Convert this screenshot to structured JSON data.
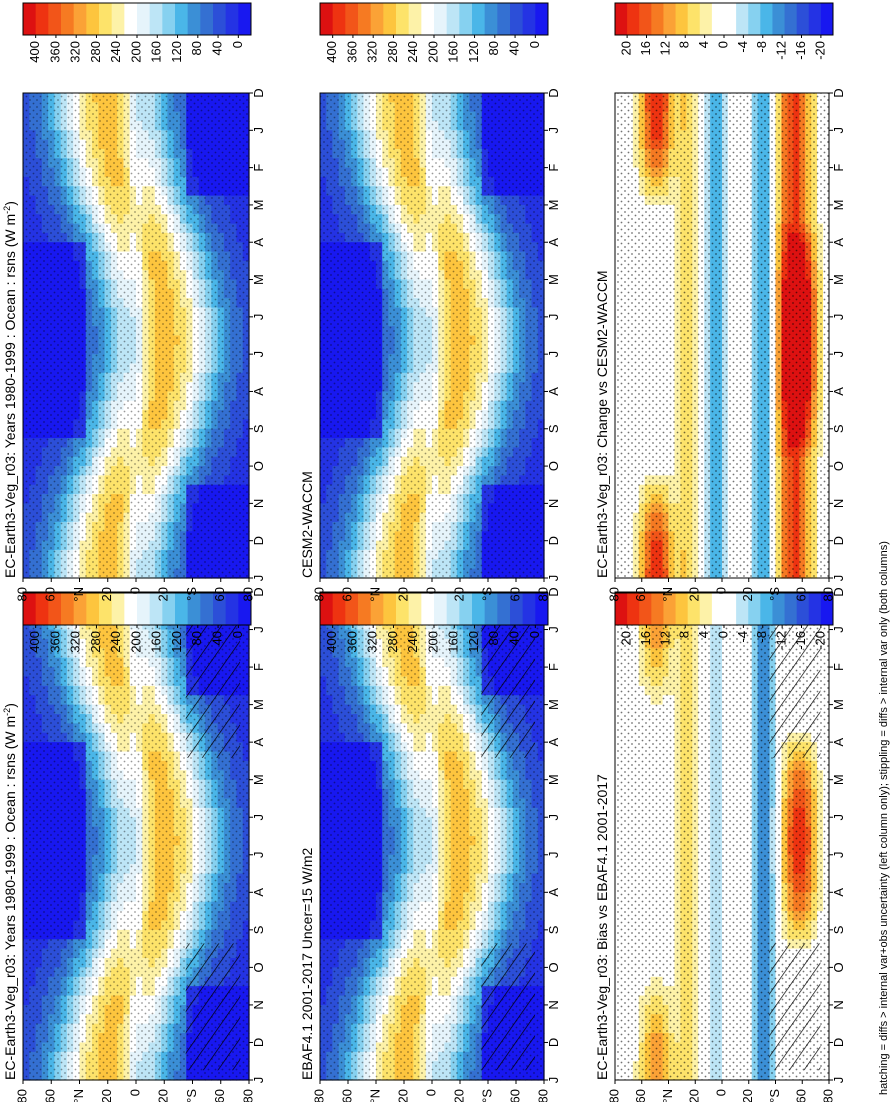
{
  "figure": {
    "footnote": "hatching = diffs > internal var+obs uncertainty (left column only); stippling = diffs > internal var only (both columns)"
  },
  "panels": [
    {
      "id": "left-top",
      "title": "EC-Earth3-Veg_r03: Years 1980-1999 : Ocean : rsns (W m",
      "title_sup": "-2",
      "title_end": ")",
      "kind": "climatology",
      "colorbar_ticks": [
        "400",
        "360",
        "320",
        "280",
        "240",
        "200",
        "160",
        "120",
        "80",
        "40",
        "0"
      ],
      "hatching": true
    },
    {
      "id": "right-top",
      "title": "EC-Earth3-Veg_r03: Years 1980-1999 : Ocean : rsns (W m",
      "title_sup": "-2",
      "title_end": ")",
      "kind": "climatology",
      "colorbar_ticks": [
        "400",
        "360",
        "320",
        "280",
        "240",
        "200",
        "160",
        "120",
        "80",
        "40",
        "0"
      ],
      "hatching": false
    },
    {
      "id": "left-mid",
      "title": "EBAF4.1 2001-2017 Uncer=15 W/m2",
      "kind": "climatology",
      "colorbar_ticks": [
        "400",
        "360",
        "320",
        "280",
        "240",
        "200",
        "160",
        "120",
        "80",
        "40",
        "0"
      ],
      "hatching": true
    },
    {
      "id": "right-mid",
      "title": "CESM2-WACCM",
      "kind": "climatology",
      "colorbar_ticks": [
        "400",
        "360",
        "320",
        "280",
        "240",
        "200",
        "160",
        "120",
        "80",
        "40",
        "0"
      ],
      "hatching": false
    },
    {
      "id": "left-bot",
      "title": "EC-Earth3-Veg_r03: Bias vs EBAF4.1 2001-2017",
      "kind": "difference",
      "colorbar_ticks": [
        "20",
        "16",
        "12",
        "8",
        "4",
        "0",
        "-4",
        "-8",
        "-12",
        "-16",
        "-20"
      ],
      "hatching": true
    },
    {
      "id": "right-bot",
      "title": "EC-Earth3-Veg_r03: Change vs CESM2-WACCM",
      "kind": "difference",
      "colorbar_ticks": [
        "20",
        "16",
        "12",
        "8",
        "4",
        "0",
        "-4",
        "-8",
        "-12",
        "-16",
        "-20"
      ],
      "hatching": false
    }
  ],
  "chart_data": {
    "type": "heatmap",
    "x_axis": "month",
    "x_ticks": [
      "D",
      "J",
      "F",
      "M",
      "A",
      "M",
      "J",
      "J",
      "A",
      "S",
      "O",
      "N",
      "D",
      "J"
    ],
    "y_axis": "latitude",
    "y_ticks": [
      "80",
      "60",
      "°N",
      "20",
      "0",
      "20",
      "°S",
      "60",
      "80"
    ],
    "y_range": [
      -90,
      90
    ],
    "climatology_range": [
      0,
      400
    ],
    "difference_range": [
      -20,
      20
    ],
    "climatology_colors": [
      "#dd1111",
      "#ee3311",
      "#f25519",
      "#f67a22",
      "#fba236",
      "#fdc53e",
      "#fde36a",
      "#fdf2a8",
      "#ffffff",
      "#e6f4fb",
      "#bde5f6",
      "#86d1f0",
      "#4ab6e8",
      "#3b8fd6",
      "#3470d2",
      "#2c4fd8",
      "#2433e4",
      "#1818f0"
    ],
    "difference_colors": [
      "#dd1111",
      "#ee3311",
      "#f25519",
      "#f67a22",
      "#fba236",
      "#fdc53e",
      "#fde36a",
      "#fdf2a8",
      "#ffffff",
      "#ffffff",
      "#bde5f6",
      "#86d1f0",
      "#4ab6e8",
      "#3b8fd6",
      "#3470d2",
      "#2c4fd8",
      "#2433e4",
      "#1818f0"
    ]
  }
}
